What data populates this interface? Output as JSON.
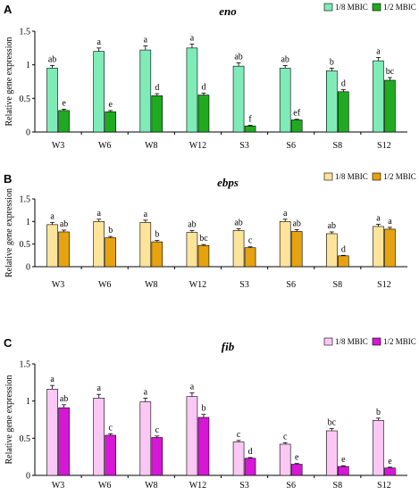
{
  "chart_data": [
    {
      "panel": "A",
      "type": "bar",
      "title": "eno",
      "xlabel": "",
      "ylabel": "Relative gene expression",
      "ylim": [
        0,
        1.5
      ],
      "yticks": [
        "0",
        "0.5",
        "1",
        "1.5"
      ],
      "grid": false,
      "legend": "top-right",
      "categories": [
        "W3",
        "W6",
        "W8",
        "W12",
        "S3",
        "S6",
        "S8",
        "S12"
      ],
      "series": [
        {
          "name": "1/8 MBIC",
          "color": "#7fecb8",
          "values": [
            0.95,
            1.2,
            1.22,
            1.25,
            0.98,
            0.95,
            0.91,
            1.06
          ],
          "errors": [
            0.04,
            0.05,
            0.06,
            0.06,
            0.05,
            0.04,
            0.04,
            0.05
          ],
          "sig": [
            "ab",
            "a",
            "a",
            "a",
            "ab",
            "ab",
            "b",
            "a"
          ]
        },
        {
          "name": "1/2 MBIC",
          "color": "#1fab1f",
          "values": [
            0.32,
            0.3,
            0.54,
            0.55,
            0.09,
            0.18,
            0.6,
            0.77
          ],
          "errors": [
            0.02,
            0.02,
            0.03,
            0.03,
            0.01,
            0.01,
            0.03,
            0.04
          ],
          "sig": [
            "e",
            "e",
            "d",
            "d",
            "f",
            "ef",
            "d",
            "bc"
          ]
        }
      ]
    },
    {
      "panel": "B",
      "type": "bar",
      "title": "ebps",
      "xlabel": "",
      "ylabel": "Relative gene expression",
      "ylim": [
        0,
        1.5
      ],
      "yticks": [
        "0",
        "0.5",
        "1",
        "1.5"
      ],
      "grid": false,
      "legend": "top-right",
      "categories": [
        "W3",
        "W6",
        "W8",
        "W12",
        "S3",
        "S6",
        "S8",
        "S12"
      ],
      "series": [
        {
          "name": "1/8 MBIC",
          "color": "#fde49a",
          "values": [
            0.93,
            1.0,
            0.98,
            0.76,
            0.8,
            1.0,
            0.73,
            0.89
          ],
          "errors": [
            0.05,
            0.05,
            0.05,
            0.04,
            0.04,
            0.05,
            0.04,
            0.05
          ],
          "sig": [
            "a",
            "a",
            "a",
            "ab",
            "ab",
            "a",
            "ab",
            "a"
          ]
        },
        {
          "name": "1/2 MBIC",
          "color": "#e6a20f",
          "values": [
            0.77,
            0.64,
            0.55,
            0.47,
            0.42,
            0.78,
            0.24,
            0.83
          ],
          "errors": [
            0.04,
            0.03,
            0.03,
            0.02,
            0.02,
            0.04,
            0.01,
            0.04
          ],
          "sig": [
            "ab",
            "b",
            "b",
            "bc",
            "c",
            "ab",
            "d",
            "a"
          ]
        }
      ]
    },
    {
      "panel": "C",
      "type": "bar",
      "title": "fib",
      "xlabel": "",
      "ylabel": "Relative gene expression",
      "ylim": [
        0,
        1.5
      ],
      "yticks": [
        "0",
        "0.5",
        "1",
        "1.5"
      ],
      "grid": false,
      "legend": "top-right",
      "categories": [
        "W3",
        "W6",
        "W8",
        "W12",
        "S3",
        "S6",
        "S8",
        "S12"
      ],
      "series": [
        {
          "name": "1/8 MBIC",
          "color": "#fbc8f5",
          "values": [
            1.16,
            1.04,
            0.99,
            1.06,
            0.45,
            0.42,
            0.6,
            0.74
          ],
          "errors": [
            0.05,
            0.05,
            0.05,
            0.05,
            0.02,
            0.02,
            0.03,
            0.03
          ],
          "sig": [
            "a",
            "a",
            "a",
            "a",
            "c",
            "c",
            "bc",
            "b"
          ]
        },
        {
          "name": "1/2 MBIC",
          "color": "#d617d6",
          "values": [
            0.91,
            0.54,
            0.51,
            0.78,
            0.23,
            0.15,
            0.12,
            0.1
          ],
          "errors": [
            0.04,
            0.02,
            0.02,
            0.04,
            0.01,
            0.01,
            0.01,
            0.01
          ],
          "sig": [
            "ab",
            "c",
            "c",
            "b",
            "d",
            "e",
            "e",
            "e"
          ]
        }
      ]
    }
  ]
}
